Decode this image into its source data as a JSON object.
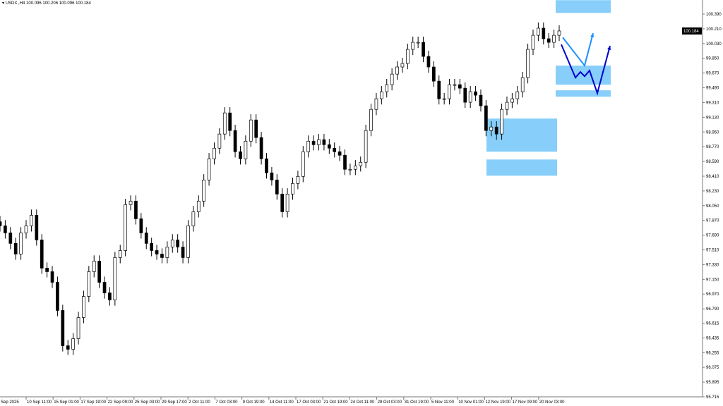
{
  "header": {
    "symbol_line": "USDX.,H4 100.096 100.206 100.096 100.184"
  },
  "chart_data": {
    "type": "candlestick",
    "symbol": "USDX.",
    "timeframe": "H4",
    "ylim": [
      95.715,
      100.39
    ],
    "grid": false,
    "y_ticks": [
      "100.390",
      "100.210",
      "100.030",
      "99.850",
      "99.670",
      "99.490",
      "99.310",
      "99.130",
      "98.950",
      "98.770",
      "98.590",
      "98.410",
      "98.230",
      "98.050",
      "97.870",
      "97.690",
      "97.510",
      "97.330",
      "97.150",
      "96.970",
      "96.790",
      "96.615",
      "96.435",
      "96.255",
      "96.075",
      "95.895",
      "95.715"
    ],
    "x_ticks": [
      "5 Sep 2025",
      "10 Sep 11:00",
      "15 Sep 01:00",
      "17 Sep 19:00",
      "22 Sep 09:00",
      "25 Sep 03:00",
      "29 Sep 17:00",
      "2 Oct 11:00",
      "7 Oct 03:00",
      "9 Oct 19:00",
      "14 Oct 11:00",
      "17 Oct 03:00",
      "21 Oct 19:00",
      "24 Oct 11:00",
      "29 Oct 03:00",
      "31 Oct 19:00",
      "5 Nov 11:00",
      "10 Nov 01:00",
      "12 Nov 19:00",
      "17 Nov 09:00",
      "20 Nov 03:00"
    ],
    "current_price": "100.184",
    "closes": [
      97.804,
      97.718,
      97.589,
      97.459,
      97.718,
      97.804,
      97.933,
      97.632,
      97.287,
      97.244,
      97.114,
      96.77,
      96.339,
      96.296,
      96.425,
      96.684,
      96.942,
      97.244,
      97.373,
      97.114,
      96.985,
      96.899,
      97.416,
      97.502,
      98.063,
      98.106,
      97.89,
      97.718,
      97.589,
      97.502,
      97.459,
      97.416,
      97.545,
      97.632,
      97.545,
      97.416,
      97.804,
      97.976,
      98.106,
      98.364,
      98.623,
      98.752,
      98.925,
      99.183,
      98.968,
      98.709,
      98.623,
      98.838,
      99.097,
      98.882,
      98.623,
      98.451,
      98.364,
      98.192,
      97.976,
      98.192,
      98.321,
      98.407,
      98.709,
      98.838,
      98.795,
      98.856,
      98.795,
      98.752,
      98.709,
      98.666,
      98.494,
      98.494,
      98.537,
      98.58,
      98.968,
      99.226,
      99.356,
      99.442,
      99.528,
      99.657,
      99.744,
      99.787,
      99.959,
      100.045,
      100.045,
      99.873,
      99.744,
      99.571,
      99.356,
      99.356,
      99.528,
      99.528,
      99.485,
      99.313,
      99.442,
      99.399,
      99.27,
      98.968,
      99.011,
      98.925,
      99.226,
      99.313,
      99.356,
      99.442,
      99.614,
      99.959,
      100.131,
      100.218,
      100.089,
      100.045,
      100.131,
      100.184
    ],
    "zones": [
      {
        "top": 100.56,
        "bottom": 100.405,
        "color": "#87CEFA"
      },
      {
        "top": 99.761,
        "bottom": 99.528,
        "color": "#87CEFA"
      },
      {
        "top": 99.459,
        "bottom": 99.381,
        "color": "#87CEFA"
      },
      {
        "top": 99.114,
        "bottom": 98.709,
        "color": "#87CEFA"
      },
      {
        "top": 98.614,
        "bottom": 98.416,
        "color": "#87CEFA"
      }
    ],
    "projections": [
      {
        "color": "#1E90FF",
        "prices": [
          100.105,
          99.761,
          100.157
        ]
      },
      {
        "color": "#0000CD",
        "prices": [
          100.019,
          99.614,
          99.683,
          99.631,
          99.7,
          99.424,
          100.002
        ]
      }
    ]
  }
}
